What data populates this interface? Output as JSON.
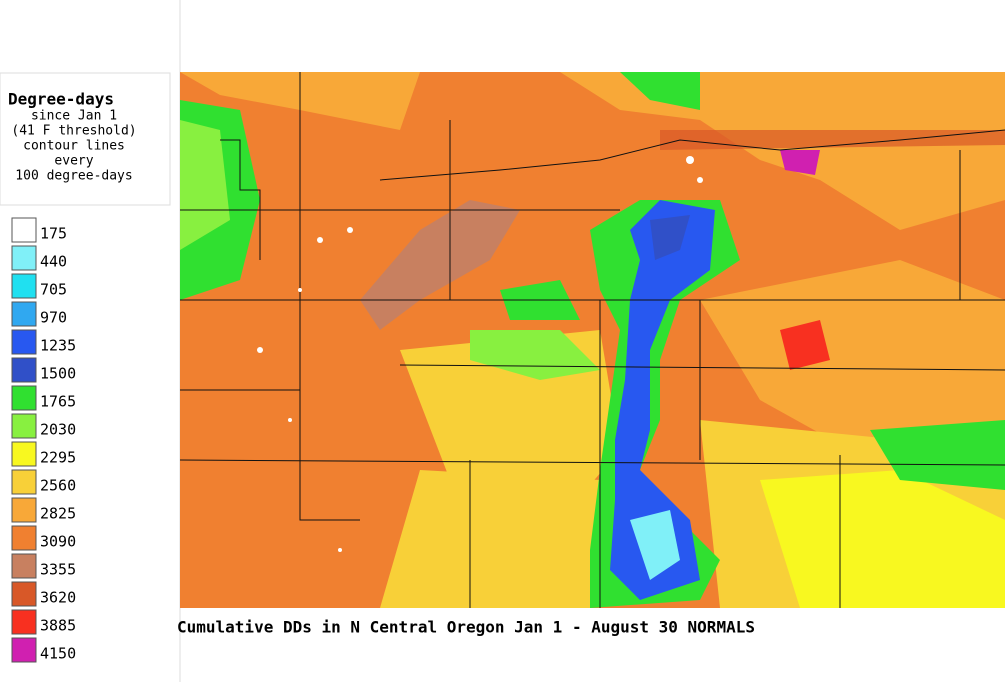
{
  "legend": {
    "title": "Degree-days",
    "lines": [
      "since Jan 1",
      "(41 F threshold)",
      "contour lines",
      "every",
      "100 degree-days"
    ],
    "items": [
      {
        "label": 175,
        "color": "#ffffff"
      },
      {
        "label": 440,
        "color": "#80f0f8"
      },
      {
        "label": 705,
        "color": "#20e0f0"
      },
      {
        "label": 970,
        "color": "#30a8f0"
      },
      {
        "label": 1235,
        "color": "#2858f0"
      },
      {
        "label": 1500,
        "color": "#3050c8"
      },
      {
        "label": 1765,
        "color": "#30e030"
      },
      {
        "label": 2030,
        "color": "#88f040"
      },
      {
        "label": 2295,
        "color": "#f8f820"
      },
      {
        "label": 2560,
        "color": "#f8d038"
      },
      {
        "label": 2825,
        "color": "#f8a838"
      },
      {
        "label": 3090,
        "color": "#f08030"
      },
      {
        "label": 3355,
        "color": "#c88060"
      },
      {
        "label": 3620,
        "color": "#d85828"
      },
      {
        "label": 3885,
        "color": "#f83020"
      },
      {
        "label": 4150,
        "color": "#d020b0"
      }
    ]
  },
  "caption": "Cumulative DDs in N Central Oregon Jan 1 - August 30 NORMALS"
}
